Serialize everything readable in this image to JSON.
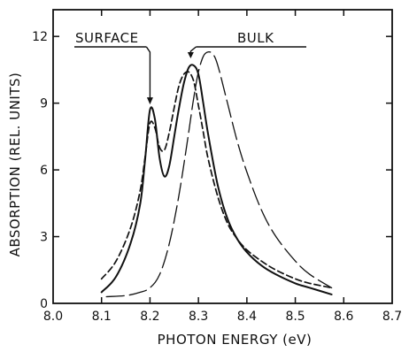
{
  "chart_data": {
    "type": "line",
    "xlabel": "PHOTON ENERGY (eV)",
    "ylabel": "ABSORPTION (REL. UNITS)",
    "xlim": [
      8.0,
      8.7
    ],
    "ylim": [
      0,
      13.2
    ],
    "xticks": [
      "8.0",
      "8.1",
      "8.2",
      "8.3",
      "8.4",
      "8.5",
      "8.6",
      "8.7"
    ],
    "yticks": [
      "0",
      "3",
      "6",
      "9",
      "12"
    ],
    "grid": false,
    "annotations": [
      {
        "text": "SURFACE",
        "x": 8.2,
        "y": 8.7
      },
      {
        "text": "BULK",
        "x": 8.284,
        "y": 10.6
      }
    ],
    "series": [
      {
        "style": "solid",
        "x": [
          8.1,
          8.13,
          8.16,
          8.18,
          8.19,
          8.2,
          8.21,
          8.22,
          8.23,
          8.24,
          8.25,
          8.26,
          8.27,
          8.28,
          8.29,
          8.3,
          8.31,
          8.32,
          8.34,
          8.36,
          8.38,
          8.4,
          8.43,
          8.46,
          8.5,
          8.53,
          8.575
        ],
        "y": [
          0.5,
          1.2,
          2.7,
          4.5,
          6.5,
          8.7,
          8.3,
          6.5,
          5.7,
          6.2,
          7.5,
          8.8,
          9.9,
          10.6,
          10.7,
          10.3,
          9.0,
          7.6,
          5.3,
          3.8,
          2.9,
          2.3,
          1.7,
          1.3,
          0.9,
          0.7,
          0.4
        ]
      },
      {
        "style": "short-dash",
        "x": [
          8.1,
          8.13,
          8.16,
          8.18,
          8.19,
          8.2,
          8.21,
          8.22,
          8.23,
          8.24,
          8.25,
          8.26,
          8.27,
          8.28,
          8.29,
          8.3,
          8.31,
          8.32,
          8.34,
          8.36,
          8.38,
          8.4,
          8.43,
          8.46,
          8.5,
          8.53,
          8.575
        ],
        "y": [
          1.1,
          1.9,
          3.4,
          5.1,
          6.6,
          8.1,
          7.9,
          7.0,
          6.9,
          7.7,
          8.8,
          9.8,
          10.3,
          10.4,
          10.0,
          8.9,
          7.7,
          6.5,
          4.8,
          3.6,
          2.9,
          2.4,
          1.9,
          1.5,
          1.1,
          0.9,
          0.7
        ]
      },
      {
        "style": "long-dash",
        "x": [
          8.11,
          8.15,
          8.18,
          8.2,
          8.22,
          8.24,
          8.26,
          8.28,
          8.29,
          8.3,
          8.31,
          8.32,
          8.33,
          8.34,
          8.36,
          8.38,
          8.4,
          8.43,
          8.46,
          8.5,
          8.53,
          8.575
        ],
        "y": [
          0.3,
          0.35,
          0.5,
          0.7,
          1.3,
          2.7,
          4.9,
          7.7,
          9.2,
          10.4,
          11.1,
          11.3,
          11.2,
          10.7,
          9.0,
          7.3,
          5.9,
          4.2,
          3.0,
          1.9,
          1.3,
          0.7
        ]
      }
    ]
  }
}
